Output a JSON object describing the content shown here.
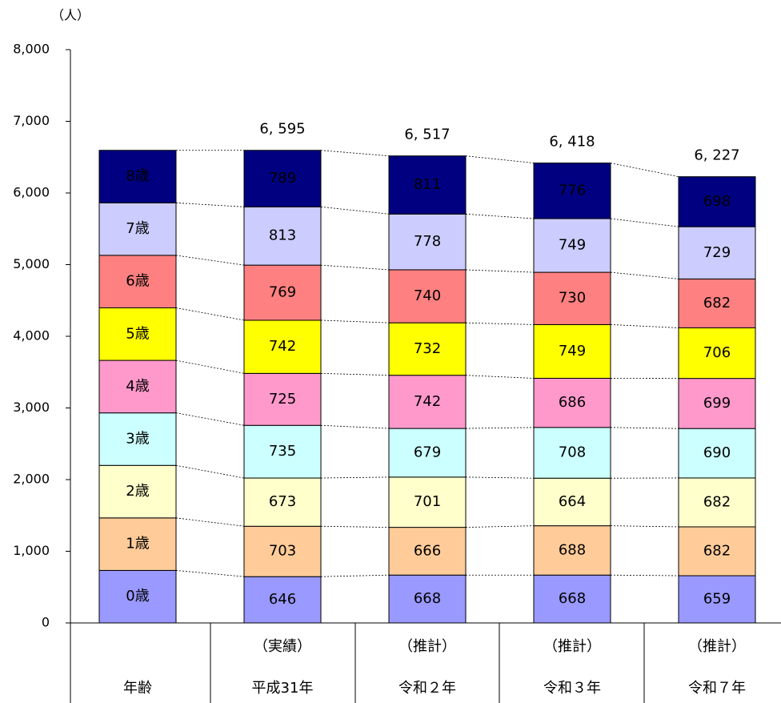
{
  "chart_data": {
    "type": "stacked-bar",
    "y_unit": "（人）",
    "legend_header": "年齢",
    "categories": [
      "平成31年",
      "令和２年",
      "令和３年",
      "令和７年"
    ],
    "category_notes": [
      "（実績）",
      "（推計）",
      "（推計）",
      "（推計）"
    ],
    "series": [
      {
        "name": "0歳",
        "color": "#9999ff",
        "values": [
          646,
          668,
          668,
          659
        ]
      },
      {
        "name": "1歳",
        "color": "#ffcc99",
        "values": [
          703,
          666,
          688,
          682
        ]
      },
      {
        "name": "2歳",
        "color": "#ffffcc",
        "values": [
          673,
          701,
          664,
          682
        ]
      },
      {
        "name": "3歳",
        "color": "#ccffff",
        "values": [
          735,
          679,
          708,
          690
        ]
      },
      {
        "name": "4歳",
        "color": "#ff99cc",
        "values": [
          725,
          742,
          686,
          699
        ]
      },
      {
        "name": "5歳",
        "color": "#ffff00",
        "values": [
          742,
          732,
          749,
          706
        ]
      },
      {
        "name": "6歳",
        "color": "#ff8080",
        "values": [
          769,
          740,
          730,
          682
        ]
      },
      {
        "name": "7歳",
        "color": "#ccccff",
        "values": [
          813,
          778,
          749,
          729
        ]
      },
      {
        "name": "8歳",
        "color": "#000080",
        "values": [
          789,
          811,
          776,
          698
        ]
      }
    ],
    "totals": [
      6595,
      6517,
      6418,
      6227
    ],
    "total_labels": [
      "6, 595",
      "6, 517",
      "6, 418",
      "6, 227"
    ],
    "ylim": [
      0,
      8000
    ],
    "yticks": [
      0,
      {
        "value": 1000,
        "label": "1,000"
      },
      {
        "value": 2000,
        "label": "2,000"
      },
      {
        "value": 3000,
        "label": "3,000"
      },
      {
        "value": 4000,
        "label": "4,000"
      },
      {
        "value": 5000,
        "label": "5,000"
      },
      {
        "value": 6000,
        "label": "6,000"
      },
      {
        "value": 7000,
        "label": "7,000"
      },
      {
        "value": 8000,
        "label": "8,000"
      }
    ]
  }
}
